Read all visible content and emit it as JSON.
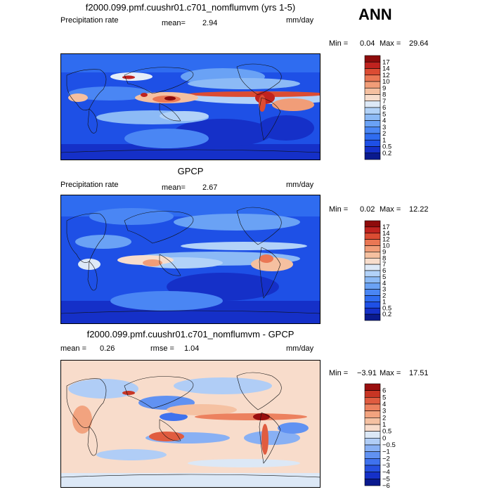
{
  "season": "ANN",
  "colors": {
    "precip": [
      "#0a1a8e",
      "#1530c8",
      "#1e50e6",
      "#2f6cf0",
      "#4a86f4",
      "#6aa2f5",
      "#8cbaf6",
      "#b2d2f8",
      "#dde9f7",
      "#f7ddcc",
      "#f5c0a0",
      "#f19d78",
      "#ea7754",
      "#db4c33",
      "#c0231f",
      "#8e0b0b"
    ],
    "diff": [
      "#0a1a8e",
      "#1530c8",
      "#2650e0",
      "#3f72ee",
      "#6192f2",
      "#88b0f4",
      "#b0cdf6",
      "#dce8f6",
      "#f8dccb",
      "#f5c1a2",
      "#f2a37f",
      "#ec815f",
      "#e05c40",
      "#c83524",
      "#9a0e0e"
    ]
  },
  "panels": [
    {
      "id": "model",
      "title": "f2000.099.pmf.cuushr01.c701_nomflumvm (yrs 1-5)",
      "left_label": "Precipitation rate",
      "mean_label": "mean=",
      "mean_value": "2.94",
      "units": "mm/day",
      "min_label": "Min =",
      "min_value": "0.04",
      "max_label": "Max =",
      "max_value": "29.64",
      "levels": [
        "17",
        "14",
        "12",
        "10",
        "9",
        "8",
        "7",
        "6",
        "5",
        "4",
        "3",
        "2",
        "1",
        "0.5",
        "0.2"
      ]
    },
    {
      "id": "obs",
      "title": "GPCP",
      "left_label": "Precipitation rate",
      "mean_label": "mean=",
      "mean_value": "2.67",
      "units": "mm/day",
      "min_label": "Min =",
      "min_value": "0.02",
      "max_label": "Max =",
      "max_value": "12.22",
      "levels": [
        "17",
        "14",
        "12",
        "10",
        "9",
        "8",
        "7",
        "6",
        "5",
        "4",
        "3",
        "2",
        "1",
        "0.5",
        "0.2"
      ]
    },
    {
      "id": "diff",
      "title": "f2000.099.pmf.cuushr01.c701_nomflumvm - GPCP",
      "mean_label": "mean =",
      "mean_value": "0.26",
      "rmse_label": "rmse =",
      "rmse_value": "1.04",
      "units": "mm/day",
      "min_label": "Min =",
      "min_value": "−3.91",
      "max_label": "Max =",
      "max_value": "17.51",
      "levels": [
        "6",
        "5",
        "4",
        "3",
        "2",
        "1",
        "0.5",
        "0",
        "−0.5",
        "−1",
        "−2",
        "−3",
        "−4",
        "−5",
        "−6"
      ]
    }
  ],
  "chart_data": [
    {
      "type": "heatmap",
      "title": "f2000.099.pmf.cuushr01.c701_nomflumvm (yrs 1-5)",
      "variable": "Precipitation rate",
      "units": "mm/day",
      "mean": 2.94,
      "min": 0.04,
      "max": 29.64,
      "contour_levels": [
        0.2,
        0.5,
        1,
        2,
        3,
        4,
        5,
        6,
        7,
        8,
        9,
        10,
        12,
        14,
        17
      ]
    },
    {
      "type": "heatmap",
      "title": "GPCP",
      "variable": "Precipitation rate",
      "units": "mm/day",
      "mean": 2.67,
      "min": 0.02,
      "max": 12.22,
      "contour_levels": [
        0.2,
        0.5,
        1,
        2,
        3,
        4,
        5,
        6,
        7,
        8,
        9,
        10,
        12,
        14,
        17
      ]
    },
    {
      "type": "heatmap",
      "title": "f2000.099.pmf.cuushr01.c701_nomflumvm - GPCP",
      "units": "mm/day",
      "mean": 0.26,
      "rmse": 1.04,
      "min": -3.91,
      "max": 17.51,
      "contour_levels": [
        -6,
        -5,
        -4,
        -3,
        -2,
        -1,
        -0.5,
        0,
        0.5,
        1,
        2,
        3,
        4,
        5,
        6
      ]
    }
  ]
}
